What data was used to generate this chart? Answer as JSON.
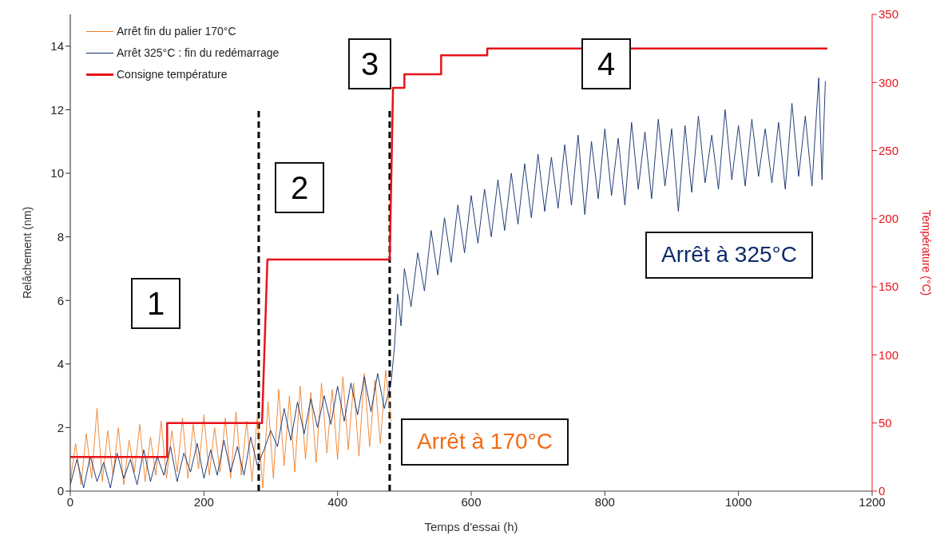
{
  "chart_data": {
    "type": "line",
    "xlabel": "Temps d'essai (h)",
    "ylabel": "Relâchement (nm)",
    "y2label": "Température (°C)",
    "xlim": [
      0,
      1200
    ],
    "xticks": [
      0,
      200,
      400,
      600,
      800,
      1000,
      1200
    ],
    "ylim": [
      0,
      15
    ],
    "yticks": [
      0,
      2,
      4,
      6,
      8,
      10,
      12,
      14
    ],
    "y2lim": [
      0,
      350
    ],
    "y2ticks": [
      0,
      50,
      100,
      150,
      200,
      250,
      300,
      350
    ],
    "legend": "top left",
    "marker": "none",
    "series": [
      {
        "name": "Arrêt fin du palier 170°C",
        "color": "#f07e26",
        "x": [
          0,
          8,
          16,
          24,
          32,
          40,
          48,
          56,
          64,
          72,
          80,
          88,
          96,
          104,
          112,
          120,
          128,
          136,
          144,
          152,
          160,
          168,
          176,
          184,
          192,
          200,
          208,
          216,
          224,
          232,
          240,
          248,
          256,
          264,
          272,
          280,
          288,
          296,
          304,
          312,
          320,
          328,
          336,
          344,
          352,
          360,
          368,
          376,
          384,
          392,
          400,
          408,
          416,
          424,
          432,
          440,
          448,
          456,
          464,
          472,
          480
        ],
        "values": [
          0.3,
          1.5,
          0.2,
          1.8,
          0.4,
          2.6,
          0.3,
          1.9,
          0.5,
          2.0,
          0.2,
          1.6,
          0.6,
          2.1,
          0.3,
          1.7,
          0.5,
          2.2,
          0.4,
          1.9,
          0.6,
          2.3,
          0.4,
          2.1,
          0.7,
          2.4,
          0.5,
          2.0,
          0.6,
          2.3,
          0.4,
          2.5,
          0.5,
          2.2,
          0.3,
          2.4,
          0.1,
          2.8,
          0.4,
          3.2,
          0.8,
          3.0,
          0.6,
          3.3,
          1.0,
          3.1,
          0.9,
          3.4,
          1.2,
          3.2,
          1.0,
          3.6,
          1.3,
          3.4,
          1.1,
          3.7,
          1.4,
          3.5,
          1.5,
          3.8,
          2.2
        ]
      },
      {
        "name": "Arrêt 325°C : fin du redémarrage",
        "color": "#0d2a6b",
        "x": [
          0,
          10,
          20,
          30,
          40,
          50,
          60,
          70,
          80,
          90,
          100,
          110,
          120,
          130,
          140,
          150,
          160,
          170,
          180,
          190,
          200,
          210,
          220,
          230,
          240,
          250,
          260,
          270,
          280,
          290,
          300,
          310,
          320,
          330,
          340,
          350,
          360,
          370,
          380,
          390,
          400,
          410,
          420,
          430,
          440,
          450,
          460,
          470,
          480,
          485,
          490,
          495,
          500,
          510,
          520,
          530,
          540,
          550,
          560,
          570,
          580,
          590,
          600,
          610,
          620,
          630,
          640,
          650,
          660,
          670,
          680,
          690,
          700,
          710,
          720,
          730,
          740,
          750,
          760,
          770,
          780,
          790,
          800,
          810,
          820,
          830,
          840,
          850,
          860,
          870,
          880,
          890,
          900,
          910,
          920,
          930,
          940,
          950,
          960,
          970,
          980,
          990,
          1000,
          1010,
          1020,
          1030,
          1040,
          1050,
          1060,
          1070,
          1080,
          1090,
          1100,
          1110,
          1120,
          1125,
          1130
        ],
        "values": [
          0.2,
          1.0,
          0.1,
          1.1,
          0.3,
          0.9,
          0.1,
          1.2,
          0.4,
          1.0,
          0.2,
          1.3,
          0.3,
          1.1,
          0.5,
          1.4,
          0.3,
          1.2,
          0.6,
          1.5,
          0.4,
          1.3,
          0.5,
          1.6,
          0.6,
          1.4,
          0.5,
          1.7,
          0.8,
          1.3,
          1.9,
          1.4,
          2.6,
          1.6,
          2.8,
          1.8,
          2.9,
          2.0,
          3.0,
          2.1,
          3.3,
          2.2,
          3.4,
          2.4,
          3.6,
          2.5,
          3.7,
          2.6,
          3.4,
          4.5,
          6.2,
          5.2,
          7.0,
          5.8,
          7.5,
          6.3,
          8.2,
          6.8,
          8.6,
          7.2,
          9.0,
          7.5,
          9.3,
          7.8,
          9.5,
          8.0,
          9.8,
          8.2,
          10.0,
          8.4,
          10.3,
          8.6,
          10.6,
          8.8,
          10.5,
          8.9,
          10.9,
          9.0,
          11.2,
          8.7,
          11.0,
          9.2,
          11.4,
          9.3,
          11.1,
          9.0,
          11.6,
          9.5,
          11.3,
          9.2,
          11.7,
          9.6,
          11.4,
          8.8,
          11.5,
          9.4,
          11.8,
          9.7,
          11.2,
          9.5,
          12.0,
          9.8,
          11.5,
          9.6,
          11.7,
          9.9,
          11.4,
          9.7,
          11.6,
          9.5,
          12.2,
          9.9,
          11.8,
          9.6,
          13.0,
          9.8,
          12.9
        ]
      },
      {
        "name": "Consigne température",
        "color": "#e8121a",
        "axis": "y2",
        "x": [
          0,
          145,
          145,
          287,
          295,
          478,
          483,
          500,
          500,
          555,
          555,
          624,
          624,
          1133
        ],
        "values": [
          25,
          25,
          50,
          50,
          170,
          170,
          296,
          296,
          306,
          306,
          320,
          320,
          325,
          325
        ]
      }
    ],
    "ref_lines": [
      {
        "axis": "x",
        "value": 282,
        "color": "#000000",
        "line_style": "dashed"
      },
      {
        "axis": "x",
        "value": 478,
        "color": "#000000",
        "line_style": "dashed"
      }
    ],
    "annotations": [
      "1",
      "2",
      "3",
      "4",
      "Arrêt à 170°C",
      "Arrêt à 325°C"
    ]
  }
}
